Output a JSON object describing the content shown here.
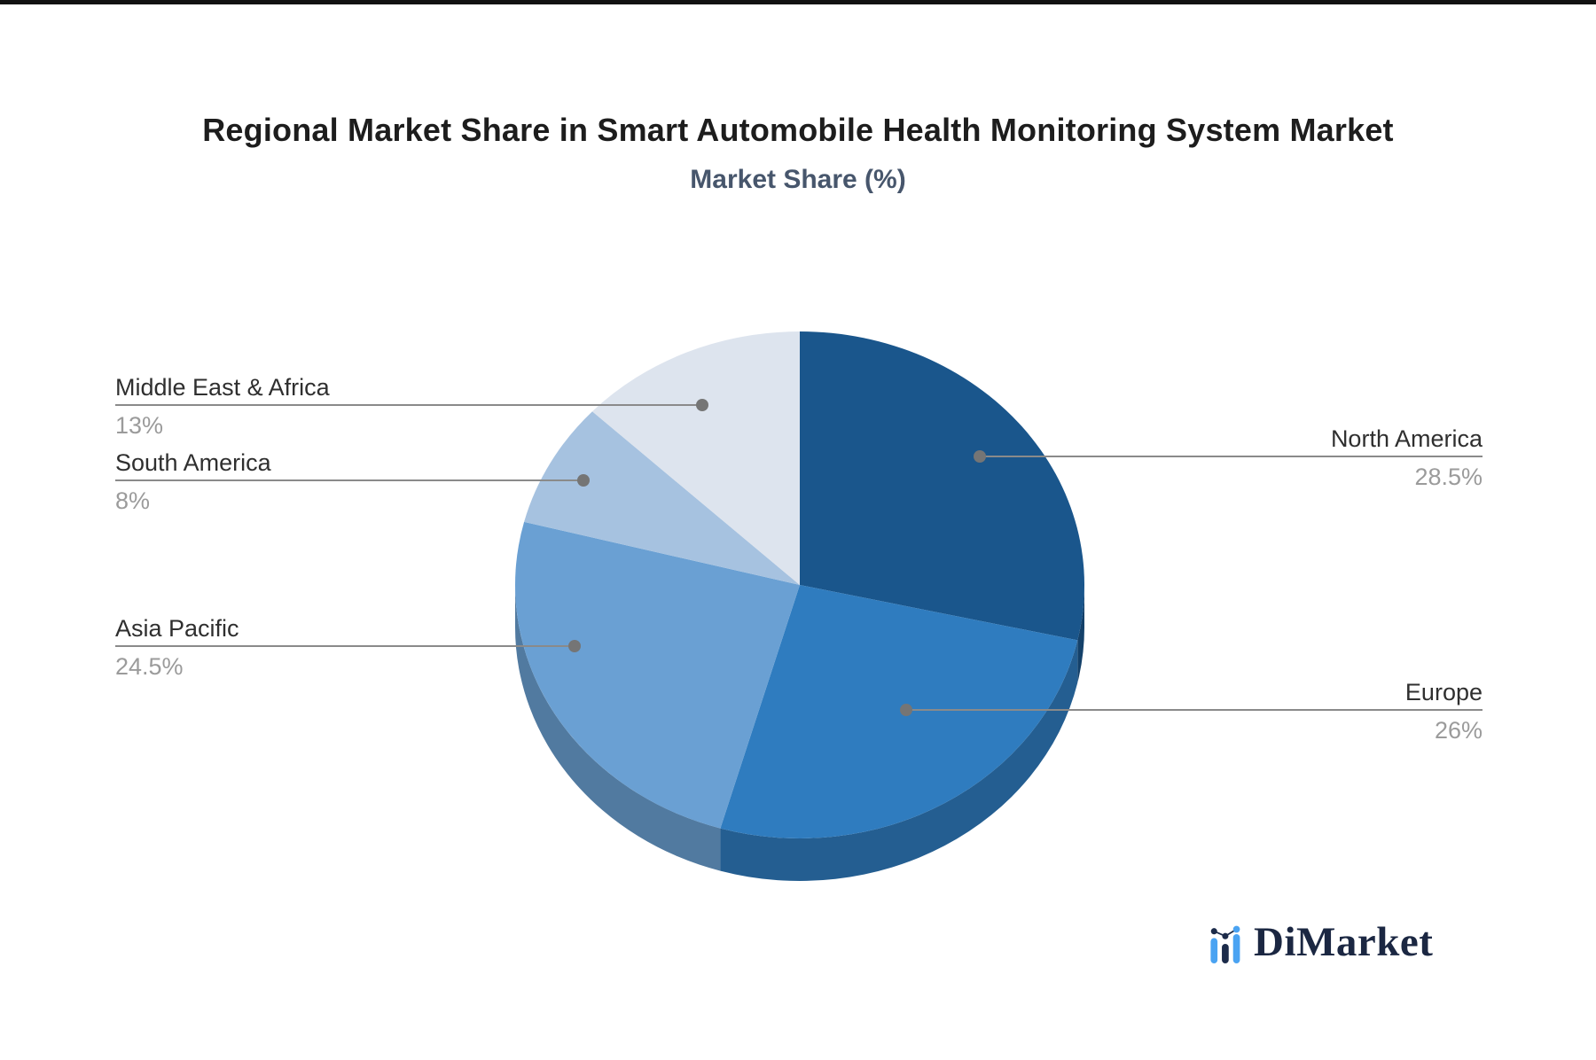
{
  "chart_data": {
    "type": "pie",
    "style": "3d-pie",
    "title": "Regional Market Share in Smart Automobile Health Monitoring System Market",
    "subtitle": "Market Share (%)",
    "unit": "%",
    "direction": "clockwise",
    "start_angle_deg": 0,
    "legend": "none",
    "slices": [
      {
        "label": "North America",
        "value": 28.5,
        "display": "28.5%",
        "color": "#1a568c"
      },
      {
        "label": "Europe",
        "value": 26,
        "display": "26%",
        "color": "#2f7cbf"
      },
      {
        "label": "Asia Pacific",
        "value": 24.5,
        "display": "24.5%",
        "color": "#6aa0d3"
      },
      {
        "label": "South America",
        "value": 8,
        "display": "8%",
        "color": "#a6c2e0"
      },
      {
        "label": "Middle East & Africa",
        "value": 13,
        "display": "13%",
        "color": "#dde4ee"
      }
    ],
    "callout_line_color": "#8a8a8a",
    "callout_dot_color": "#757575",
    "label_color": "#2f2f2f",
    "value_color": "#9b9b9b"
  },
  "branding": {
    "logo_text": "DiMarket",
    "logo_text_color": "#1b2742",
    "logo_bar_color": "#4aa3f2",
    "logo_dark_color": "#1c2b4a"
  }
}
